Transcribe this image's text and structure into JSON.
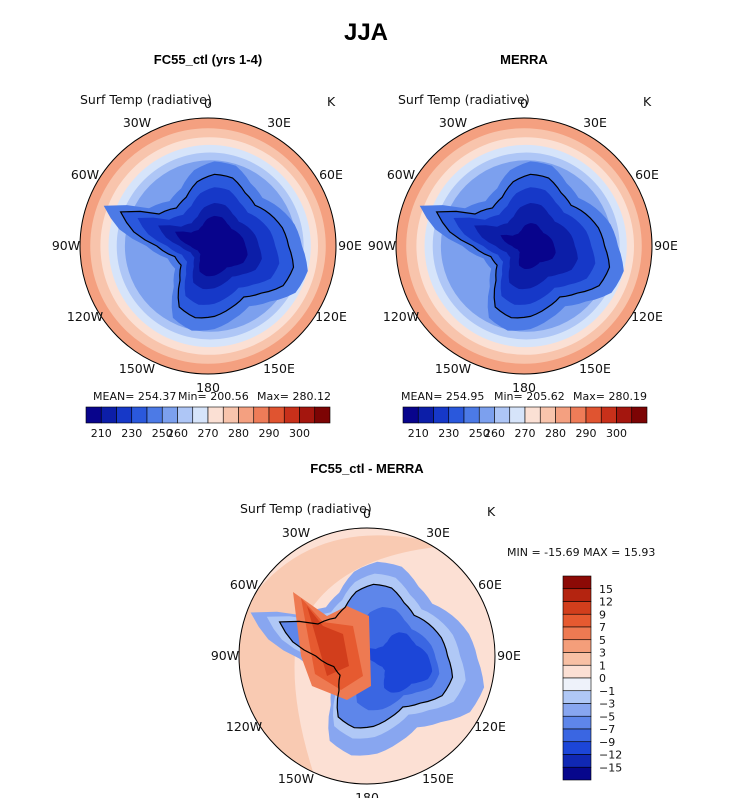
{
  "figure": {
    "title": "JJA"
  },
  "colors": {
    "abs_palette": [
      "#08048c",
      "#0c1ea8",
      "#1638c8",
      "#2a58dc",
      "#4c7ae6",
      "#7ca0ee",
      "#aec6f6",
      "#d6e4fa",
      "#fbe0d4",
      "#f8c4ac",
      "#f4a080",
      "#ee7c58",
      "#e05430",
      "#c8301a",
      "#a4160e",
      "#7c0404"
    ],
    "diff_palette": [
      "#07078c",
      "#1028b4",
      "#1c46d8",
      "#3a66e2",
      "#5e86ea",
      "#88a6f0",
      "#b0c8f6",
      "#eef2fa",
      "#fce0d4",
      "#f8c0a4",
      "#f49e7a",
      "#ee7a52",
      "#e65a30",
      "#d23e1c",
      "#b42410",
      "#8c0a06"
    ]
  },
  "chart_data": [
    {
      "type": "heatmap",
      "title": "FC55_ctl (yrs 1-4)",
      "variable": "Surf Temp (radiative)",
      "units": "K",
      "stats": {
        "mean_label": "MEAN= 254.37",
        "min_label": "Min= 200.56",
        "max_label": "Max= 280.12"
      },
      "colorbar_ticks": [
        "210",
        "230",
        "250",
        "260",
        "270",
        "280",
        "290",
        "300"
      ],
      "colorbar_levels": [
        205,
        210,
        220,
        230,
        240,
        250,
        255,
        260,
        265,
        270,
        275,
        280,
        285,
        290,
        295,
        300,
        305
      ],
      "longitude_labels": [
        "0",
        "30E",
        "60E",
        "90E",
        "120E",
        "150E",
        "180",
        "150W",
        "120W",
        "90W",
        "60W",
        "30W"
      ]
    },
    {
      "type": "heatmap",
      "title": "MERRA",
      "variable": "Surf Temp (radiative)",
      "units": "K",
      "stats": {
        "mean_label": "MEAN= 254.95",
        "min_label": "Min= 205.62",
        "max_label": "Max= 280.19"
      },
      "colorbar_ticks": [
        "210",
        "230",
        "250",
        "260",
        "270",
        "280",
        "290",
        "300"
      ],
      "colorbar_levels": [
        205,
        210,
        220,
        230,
        240,
        250,
        255,
        260,
        265,
        270,
        275,
        280,
        285,
        290,
        295,
        300,
        305
      ],
      "longitude_labels": [
        "0",
        "30E",
        "60E",
        "90E",
        "120E",
        "150E",
        "180",
        "150W",
        "120W",
        "90W",
        "60W",
        "30W"
      ]
    },
    {
      "type": "heatmap",
      "title": "FC55_ctl - MERRA",
      "variable": "Surf Temp (radiative)",
      "units": "K",
      "stats": {
        "range_label": "MIN = -15.69 MAX =  15.93"
      },
      "colorbar_ticks": [
        "15",
        "12",
        "9",
        "7",
        "5",
        "3",
        "1",
        "0",
        "−1",
        "−3",
        "−5",
        "−7",
        "−9",
        "−12",
        "−15"
      ],
      "longitude_labels": [
        "0",
        "30E",
        "60E",
        "90E",
        "120E",
        "150E",
        "180",
        "150W",
        "120W",
        "90W",
        "60W",
        "30W"
      ]
    }
  ]
}
